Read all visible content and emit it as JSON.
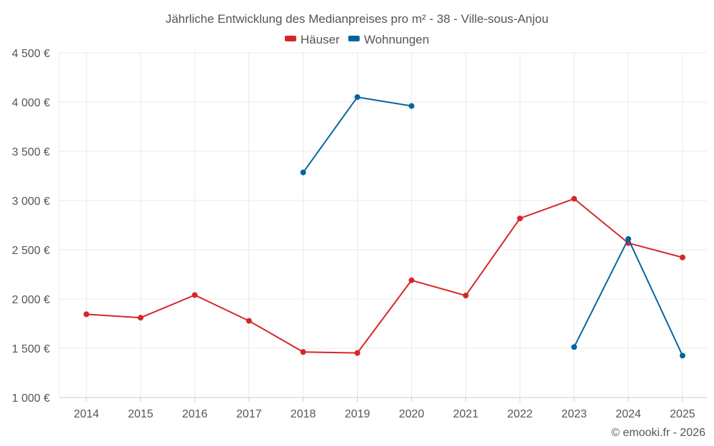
{
  "chart_data": {
    "type": "line",
    "title": "Jährliche Entwicklung des Medianpreises pro m² - 38 - Ville-sous-Anjou",
    "categories": [
      "2014",
      "2015",
      "2016",
      "2017",
      "2018",
      "2019",
      "2020",
      "2021",
      "2022",
      "2023",
      "2024",
      "2025"
    ],
    "series": [
      {
        "name": "Häuser",
        "color": "#d62728",
        "values": [
          1845,
          1810,
          2040,
          1778,
          1462,
          1452,
          2190,
          2035,
          2818,
          3018,
          2568,
          2422
        ]
      },
      {
        "name": "Wohnungen",
        "color": "#05649f",
        "values": [
          null,
          null,
          null,
          null,
          3285,
          4050,
          3960,
          null,
          null,
          1512,
          2610,
          1425
        ]
      }
    ],
    "ylim": [
      1000,
      4500
    ],
    "yticks": [
      1000,
      1500,
      2000,
      2500,
      3000,
      3500,
      4000,
      4500
    ],
    "ytick_labels": [
      "1 000 €",
      "1 500 €",
      "2 000 €",
      "2 500 €",
      "3 000 €",
      "3 500 €",
      "4 000 €",
      "4 500 €"
    ],
    "xlabel": "",
    "ylabel": "",
    "grid": true,
    "legend_position": "top-center"
  },
  "credit": "© emooki.fr - 2026"
}
